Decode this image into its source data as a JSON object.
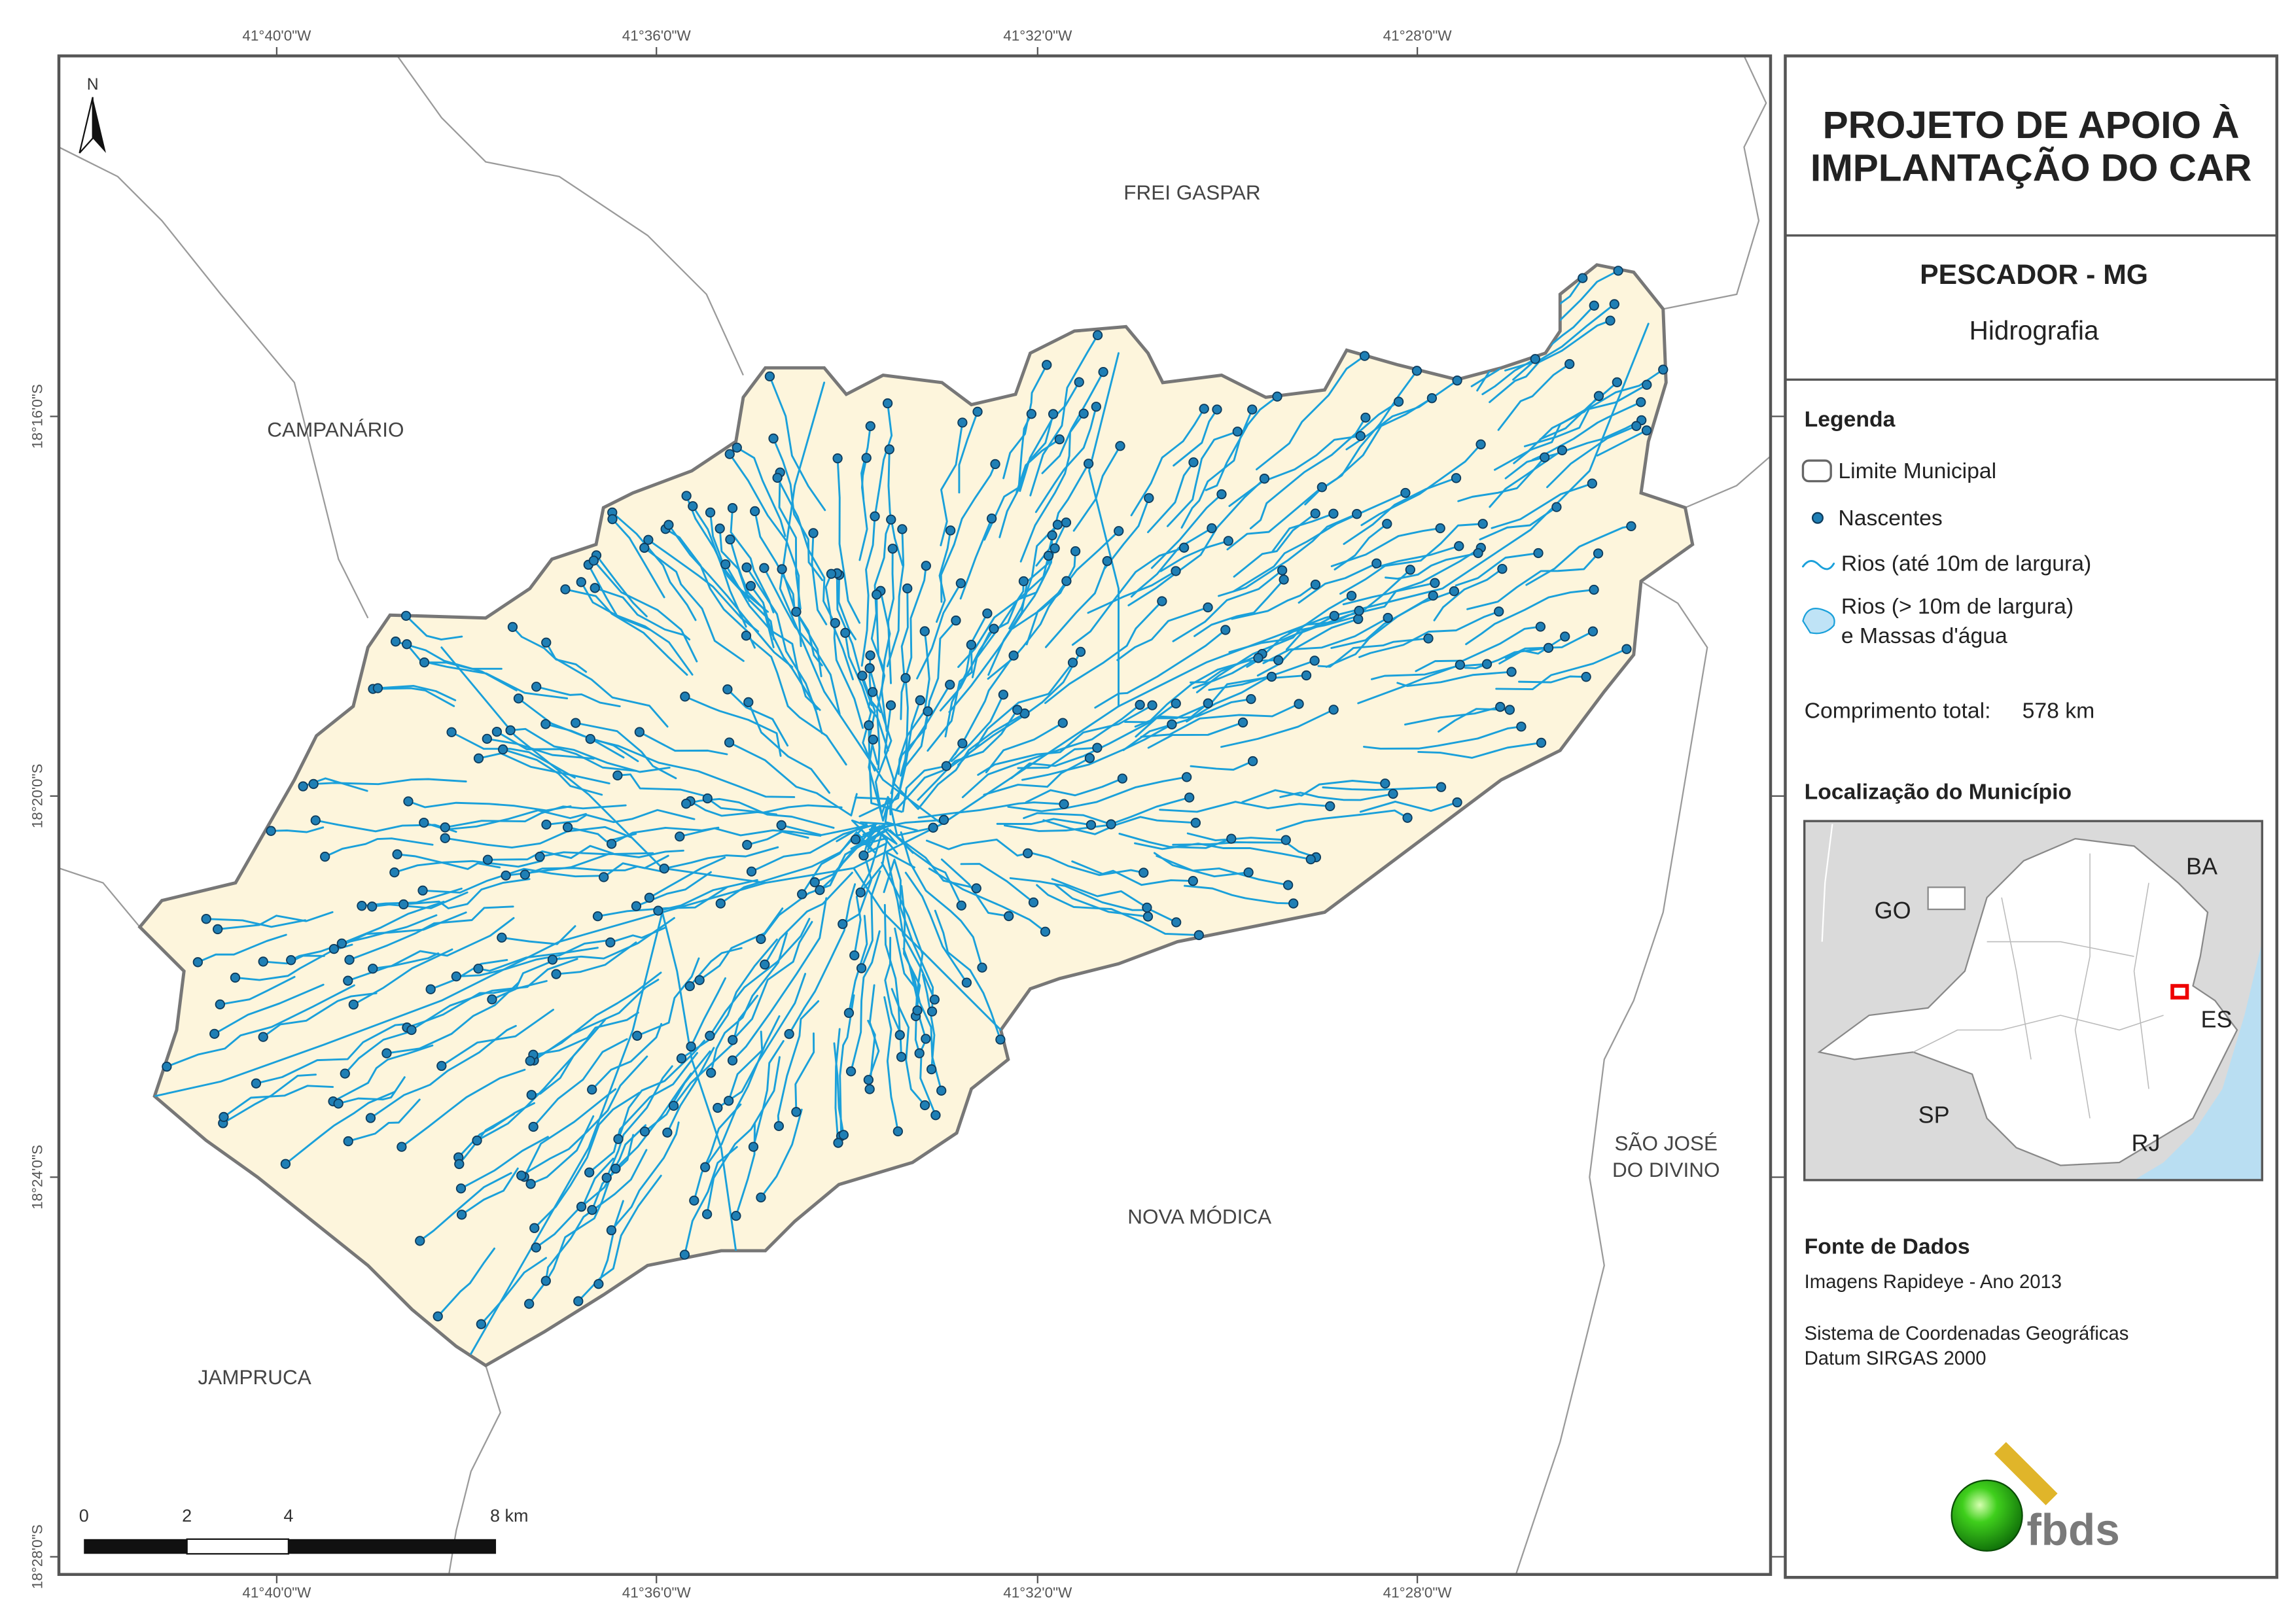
{
  "map": {
    "north": "N",
    "longitudes": [
      "41°40'0\"W",
      "41°36'0\"W",
      "41°32'0\"W",
      "41°28'0\"W"
    ],
    "latitudes": [
      "18°16'0\"S",
      "18°20'0\"S",
      "18°24'0\"S",
      "18°28'0\"S"
    ],
    "places": [
      "FREI GASPAR",
      "CAMPANÁRIO",
      "NOVA MÓDICA",
      "SÃO JOSÉ",
      "DO DIVINO",
      "JAMPRUCA"
    ],
    "scale": [
      "0",
      "2",
      "4",
      "8 km"
    ]
  },
  "header": {
    "title_line1": "PROJETO DE APOIO À",
    "title_line2": "IMPLANTAÇÃO DO CAR",
    "municipality": "PESCADOR - MG",
    "theme": "Hidrografia"
  },
  "legend": {
    "title": "Legenda",
    "items": [
      {
        "label": "Limite Municipal"
      },
      {
        "label": "Nascentes"
      },
      {
        "label": "Rios (até 10m de largura)"
      },
      {
        "label": "Rios (> 10m de largura)",
        "label_2": "e Massas d'água"
      }
    ]
  },
  "total_length": {
    "label": "Comprimento total:",
    "value": "578 km"
  },
  "location": {
    "title": "Localização do Município",
    "states": [
      "GO",
      "BA",
      "ES",
      "SP",
      "RJ"
    ]
  },
  "sources": {
    "title": "Fonte de Dados",
    "lines": [
      "Imagens Rapideye - Ano 2013",
      "Sistema de Coordenadas Geográficas",
      "Datum SIRGAS 2000"
    ]
  },
  "logo": "fbds"
}
